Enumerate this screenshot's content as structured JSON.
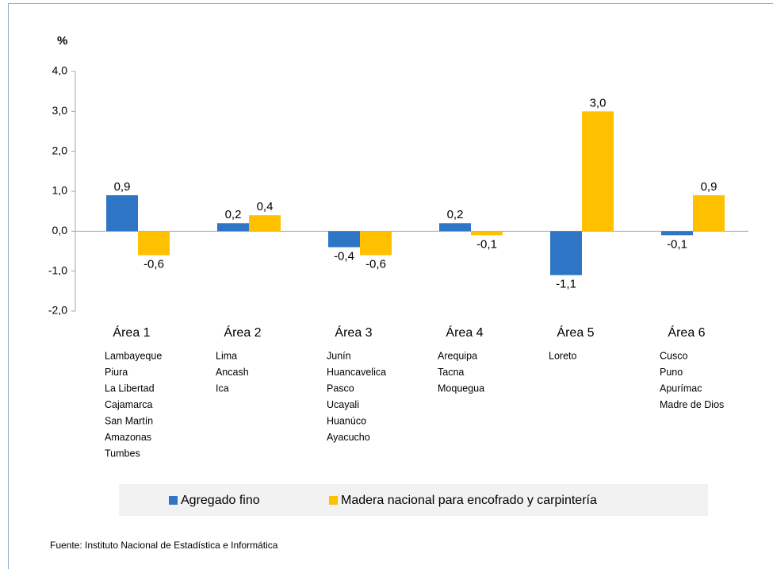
{
  "chart_data": {
    "type": "bar",
    "y_label": "%",
    "categories": [
      "Área 1",
      "Área 2",
      "Área 3",
      "Área 4",
      "Área 5",
      "Área 6"
    ],
    "category_regions": [
      [
        "Lambayeque",
        "Piura",
        "La Libertad",
        "Cajamarca",
        "San Martín",
        "Amazonas",
        "Tumbes"
      ],
      [
        "Lima",
        "Ancash",
        "Ica"
      ],
      [
        "Junín",
        "Huancavelica",
        "Pasco",
        "Ucayali",
        "Huanúco",
        "Ayacucho"
      ],
      [
        "Arequipa",
        "Tacna",
        "Moquegua"
      ],
      [
        "Loreto"
      ],
      [
        "Cusco",
        "Puno",
        "Apurímac",
        "Madre de Dios"
      ]
    ],
    "series": [
      {
        "name": "Agregado fino",
        "color": "#2e75c6",
        "values": [
          0.9,
          0.2,
          -0.4,
          0.2,
          -1.1,
          -0.1
        ],
        "value_labels": [
          "0,9",
          "0,2",
          "-0,4",
          "0,2",
          "-1,1",
          "-0,1"
        ]
      },
      {
        "name": "Madera nacional para encofrado y carpintería",
        "color": "#ffc000",
        "values": [
          -0.6,
          0.4,
          -0.6,
          -0.1,
          3.0,
          0.9
        ],
        "value_labels": [
          "-0,6",
          "0,4",
          "-0,6",
          "-0,1",
          "3,0",
          "0,9"
        ]
      }
    ],
    "ylim": [
      -2,
      4
    ],
    "yticks": [
      {
        "value": -2,
        "label": "-2,0"
      },
      {
        "value": -1,
        "label": "-1,0"
      },
      {
        "value": 0,
        "label": "0,0"
      },
      {
        "value": 1,
        "label": "1,0"
      },
      {
        "value": 2,
        "label": "2,0"
      },
      {
        "value": 3,
        "label": "3,0"
      },
      {
        "value": 4,
        "label": "4,0"
      }
    ],
    "source": "Fuente: Instituto Nacional de Estadística e Informática"
  }
}
